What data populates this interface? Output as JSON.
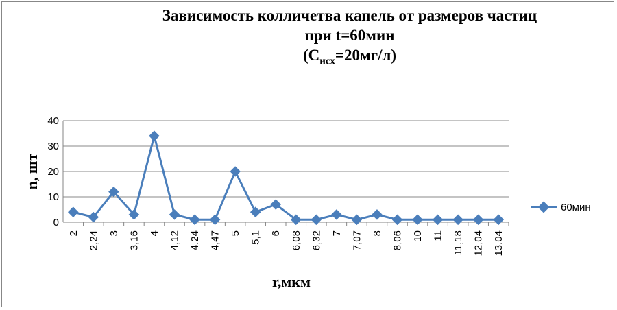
{
  "chart_data": {
    "type": "line",
    "title_line1": "Зависимость колличетва капель от размеров частиц",
    "title_line2": "при t=60мин",
    "title_line3_pre": "(C",
    "title_line3_sub": "исх",
    "title_line3_post": "=20мг/л)",
    "xlabel": "r,мкм",
    "ylabel": "n, шт",
    "ylim": [
      0,
      40
    ],
    "yticks": [
      0,
      10,
      20,
      30,
      40
    ],
    "grid": true,
    "legend_position": "right",
    "categories": [
      "2",
      "2,24",
      "3",
      "3,16",
      "4",
      "4,12",
      "4,24",
      "4,47",
      "5",
      "5,1",
      "6",
      "6,08",
      "6,32",
      "7",
      "7,07",
      "8",
      "8,06",
      "10",
      "11",
      "11,18",
      "12,04",
      "13,04"
    ],
    "series": [
      {
        "name": "60мин",
        "color": "#4a7ebb",
        "values": [
          4,
          2,
          12,
          3,
          34,
          3,
          1,
          1,
          20,
          4,
          7,
          1,
          1,
          3,
          1,
          3,
          1,
          1,
          1,
          1,
          1,
          1
        ]
      }
    ]
  }
}
